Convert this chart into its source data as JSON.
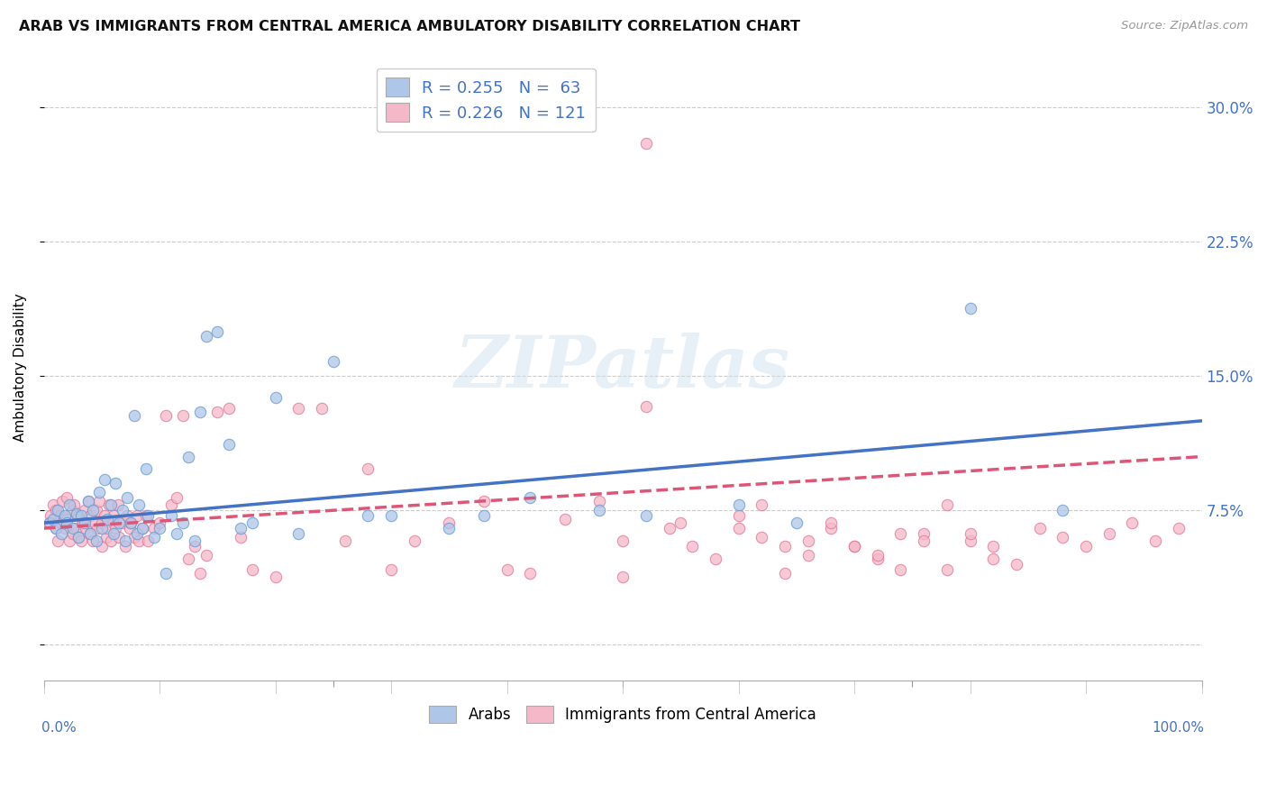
{
  "title": "ARAB VS IMMIGRANTS FROM CENTRAL AMERICA AMBULATORY DISABILITY CORRELATION CHART",
  "source": "Source: ZipAtlas.com",
  "ylabel": "Ambulatory Disability",
  "arab_label": "Arabs",
  "immigrant_label": "Immigrants from Central America",
  "xlim": [
    0.0,
    1.0
  ],
  "ylim": [
    -0.02,
    0.33
  ],
  "yticks": [
    0.0,
    0.075,
    0.15,
    0.225,
    0.3
  ],
  "ytick_labels": [
    "",
    "7.5%",
    "15.0%",
    "22.5%",
    "30.0%"
  ],
  "arab_color": "#aec6e8",
  "arab_edge_color": "#6699cc",
  "immigrant_color": "#f5b8c8",
  "immigrant_edge_color": "#dd7799",
  "arab_line_color": "#4472c4",
  "immigrant_line_color": "#dd5577",
  "legend_text_color": "#4472c4",
  "arab_R": 0.255,
  "arab_N": 63,
  "immigrant_R": 0.226,
  "immigrant_N": 121,
  "watermark": "ZIPatlas",
  "background_color": "#ffffff",
  "grid_color": "#cccccc",
  "arab_scatter_x": [
    0.005,
    0.008,
    0.01,
    0.012,
    0.015,
    0.018,
    0.02,
    0.022,
    0.025,
    0.028,
    0.03,
    0.032,
    0.035,
    0.038,
    0.04,
    0.042,
    0.045,
    0.048,
    0.05,
    0.052,
    0.055,
    0.058,
    0.06,
    0.062,
    0.065,
    0.068,
    0.07,
    0.072,
    0.075,
    0.078,
    0.08,
    0.082,
    0.085,
    0.088,
    0.09,
    0.095,
    0.1,
    0.105,
    0.11,
    0.115,
    0.12,
    0.125,
    0.13,
    0.135,
    0.14,
    0.15,
    0.16,
    0.17,
    0.18,
    0.2,
    0.22,
    0.25,
    0.28,
    0.3,
    0.35,
    0.38,
    0.42,
    0.48,
    0.52,
    0.6,
    0.65,
    0.8,
    0.88
  ],
  "arab_scatter_y": [
    0.068,
    0.07,
    0.065,
    0.075,
    0.062,
    0.072,
    0.068,
    0.078,
    0.065,
    0.073,
    0.06,
    0.072,
    0.068,
    0.08,
    0.062,
    0.075,
    0.058,
    0.085,
    0.065,
    0.092,
    0.07,
    0.078,
    0.062,
    0.09,
    0.068,
    0.075,
    0.058,
    0.082,
    0.068,
    0.128,
    0.062,
    0.078,
    0.065,
    0.098,
    0.072,
    0.06,
    0.065,
    0.04,
    0.072,
    0.062,
    0.068,
    0.105,
    0.058,
    0.13,
    0.172,
    0.175,
    0.112,
    0.065,
    0.068,
    0.138,
    0.062,
    0.158,
    0.072,
    0.072,
    0.065,
    0.072,
    0.082,
    0.075,
    0.072,
    0.078,
    0.068,
    0.188,
    0.075
  ],
  "immigrant_scatter_x": [
    0.005,
    0.006,
    0.008,
    0.01,
    0.01,
    0.012,
    0.014,
    0.015,
    0.016,
    0.018,
    0.02,
    0.02,
    0.022,
    0.024,
    0.025,
    0.026,
    0.028,
    0.03,
    0.03,
    0.032,
    0.034,
    0.035,
    0.036,
    0.038,
    0.04,
    0.04,
    0.042,
    0.044,
    0.045,
    0.046,
    0.048,
    0.05,
    0.05,
    0.052,
    0.054,
    0.055,
    0.056,
    0.058,
    0.06,
    0.06,
    0.062,
    0.064,
    0.065,
    0.068,
    0.07,
    0.072,
    0.074,
    0.075,
    0.078,
    0.08,
    0.082,
    0.085,
    0.088,
    0.09,
    0.095,
    0.1,
    0.105,
    0.11,
    0.115,
    0.12,
    0.125,
    0.13,
    0.135,
    0.14,
    0.15,
    0.16,
    0.17,
    0.18,
    0.2,
    0.22,
    0.24,
    0.26,
    0.28,
    0.3,
    0.32,
    0.35,
    0.38,
    0.4,
    0.42,
    0.45,
    0.48,
    0.5,
    0.52,
    0.55,
    0.58,
    0.6,
    0.62,
    0.64,
    0.66,
    0.68,
    0.7,
    0.72,
    0.74,
    0.76,
    0.78,
    0.8,
    0.82,
    0.84,
    0.86,
    0.88,
    0.9,
    0.92,
    0.94,
    0.96,
    0.98,
    0.5,
    0.52,
    0.54,
    0.56,
    0.6,
    0.62,
    0.64,
    0.66,
    0.68,
    0.7,
    0.72,
    0.74,
    0.76,
    0.78,
    0.8,
    0.82
  ],
  "immigrant_scatter_y": [
    0.068,
    0.072,
    0.078,
    0.065,
    0.075,
    0.058,
    0.072,
    0.068,
    0.08,
    0.065,
    0.07,
    0.082,
    0.058,
    0.075,
    0.062,
    0.078,
    0.065,
    0.06,
    0.072,
    0.058,
    0.068,
    0.075,
    0.065,
    0.08,
    0.062,
    0.072,
    0.058,
    0.068,
    0.075,
    0.065,
    0.08,
    0.055,
    0.068,
    0.072,
    0.06,
    0.065,
    0.078,
    0.058,
    0.072,
    0.068,
    0.065,
    0.078,
    0.06,
    0.068,
    0.055,
    0.072,
    0.065,
    0.068,
    0.06,
    0.072,
    0.058,
    0.065,
    0.072,
    0.058,
    0.065,
    0.068,
    0.128,
    0.078,
    0.082,
    0.128,
    0.048,
    0.055,
    0.04,
    0.05,
    0.13,
    0.132,
    0.06,
    0.042,
    0.038,
    0.132,
    0.132,
    0.058,
    0.098,
    0.042,
    0.058,
    0.068,
    0.08,
    0.042,
    0.04,
    0.07,
    0.08,
    0.058,
    0.133,
    0.068,
    0.048,
    0.065,
    0.078,
    0.055,
    0.05,
    0.065,
    0.055,
    0.048,
    0.042,
    0.062,
    0.078,
    0.058,
    0.048,
    0.045,
    0.065,
    0.06,
    0.055,
    0.062,
    0.068,
    0.058,
    0.065,
    0.038,
    0.28,
    0.065,
    0.055,
    0.072,
    0.06,
    0.04,
    0.058,
    0.068,
    0.055,
    0.05,
    0.062,
    0.058,
    0.042,
    0.062,
    0.055
  ]
}
